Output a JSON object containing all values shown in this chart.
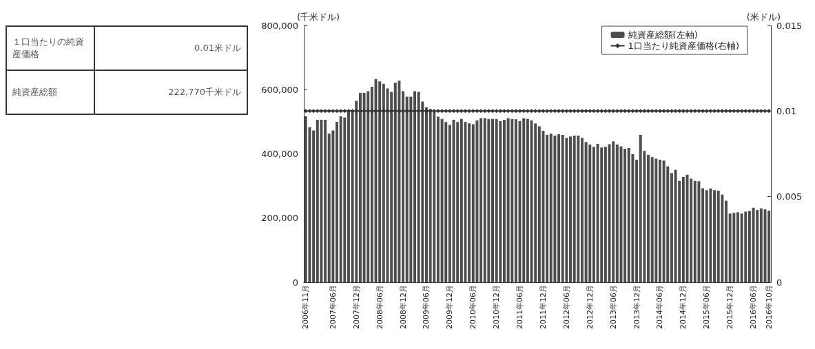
{
  "chart_data": [
    {
      "type": "other",
      "categories": [
        "１口当たりの純資産価格",
        "純資産総額"
      ],
      "value_labels": [
        "0.01米ドル",
        "222,770千米ドル"
      ]
    },
    {
      "type": "bar",
      "ylabel": "(千米ドル)",
      "y2label": "(米ドル)",
      "legend": "top right",
      "grid": false,
      "categories": [
        "2006年11月",
        null,
        null,
        null,
        null,
        null,
        null,
        "2007年06月",
        null,
        null,
        null,
        null,
        null,
        "2007年12月",
        null,
        null,
        null,
        null,
        null,
        "2008年06月",
        null,
        null,
        null,
        null,
        null,
        "2008年12月",
        null,
        null,
        null,
        null,
        null,
        "2009年06月",
        null,
        null,
        null,
        null,
        null,
        "2009年12月",
        null,
        null,
        null,
        null,
        null,
        "2010年06月",
        null,
        null,
        null,
        null,
        null,
        "2010年12月",
        null,
        null,
        null,
        null,
        null,
        "2011年06月",
        null,
        null,
        null,
        null,
        null,
        "2011年12月",
        null,
        null,
        null,
        null,
        null,
        "2012年06月",
        null,
        null,
        null,
        null,
        null,
        "2012年12月",
        null,
        null,
        null,
        null,
        null,
        "2013年06月",
        null,
        null,
        null,
        null,
        null,
        "2013年12月",
        null,
        null,
        null,
        null,
        null,
        "2014年06月",
        null,
        null,
        null,
        null,
        null,
        "2014年12月",
        null,
        null,
        null,
        null,
        null,
        "2015年06月",
        null,
        null,
        null,
        null,
        null,
        "2015年12月",
        null,
        null,
        null,
        null,
        null,
        "2016年06月",
        null,
        null,
        null,
        "2016年10月"
      ],
      "ylim": [
        0,
        800000
      ],
      "yticks": [
        0,
        {
          "value": 200000,
          "label": "200,000"
        },
        {
          "value": 400000,
          "label": "400,000"
        },
        {
          "value": 600000,
          "label": "600,000"
        },
        {
          "value": 800000,
          "label": "800,000"
        }
      ],
      "y2lim": [
        0,
        0.015
      ],
      "y2ticks": [
        0,
        0.005,
        0.01,
        0.015
      ],
      "series": [
        {
          "name": "純資産総額(左軸)",
          "type": "bar",
          "color": "#4d4d4d",
          "values": [
            517000,
            483000,
            473000,
            506000,
            506000,
            506000,
            463000,
            473000,
            500000,
            517000,
            513000,
            530000,
            535000,
            565000,
            590000,
            590000,
            595000,
            609000,
            633000,
            626000,
            618000,
            604000,
            593000,
            622000,
            628000,
            595000,
            578000,
            578000,
            595000,
            593000,
            563000,
            545000,
            540000,
            530000,
            516000,
            509000,
            499000,
            490000,
            506000,
            499000,
            509000,
            500000,
            495000,
            492000,
            504000,
            511000,
            511000,
            509000,
            509000,
            509000,
            502000,
            506000,
            511000,
            509000,
            508000,
            502000,
            511000,
            509000,
            504000,
            495000,
            486000,
            472000,
            459000,
            463000,
            457000,
            461000,
            459000,
            450000,
            454000,
            457000,
            457000,
            450000,
            437000,
            429000,
            422000,
            431000,
            420000,
            422000,
            430000,
            439000,
            429000,
            423000,
            416000,
            418000,
            399000,
            382000,
            459000,
            409000,
            397000,
            390000,
            385000,
            382000,
            379000,
            361000,
            340000,
            350000,
            316000,
            328000,
            335000,
            323000,
            316000,
            315000,
            293000,
            287000,
            292000,
            287000,
            285000,
            273000,
            254000,
            214000,
            216000,
            218000,
            214000,
            220000,
            222000,
            232000,
            225000,
            230000,
            227000,
            223000
          ]
        },
        {
          "name": "1口当たり純資産価格(右軸)",
          "type": "line",
          "axis": "y2",
          "color": "#333333",
          "marker": "diamond",
          "line_style": "solid",
          "values": [
            0.01,
            0.01,
            0.01,
            0.01,
            0.01,
            0.01,
            0.01,
            0.01,
            0.01,
            0.01,
            0.01,
            0.01,
            0.01,
            0.01,
            0.01,
            0.01,
            0.01,
            0.01,
            0.01,
            0.01,
            0.01,
            0.01,
            0.01,
            0.01,
            0.01,
            0.01,
            0.01,
            0.01,
            0.01,
            0.01,
            0.01,
            0.01,
            0.01,
            0.01,
            0.01,
            0.01,
            0.01,
            0.01,
            0.01,
            0.01,
            0.01,
            0.01,
            0.01,
            0.01,
            0.01,
            0.01,
            0.01,
            0.01,
            0.01,
            0.01,
            0.01,
            0.01,
            0.01,
            0.01,
            0.01,
            0.01,
            0.01,
            0.01,
            0.01,
            0.01,
            0.01,
            0.01,
            0.01,
            0.01,
            0.01,
            0.01,
            0.01,
            0.01,
            0.01,
            0.01,
            0.01,
            0.01,
            0.01,
            0.01,
            0.01,
            0.01,
            0.01,
            0.01,
            0.01,
            0.01,
            0.01,
            0.01,
            0.01,
            0.01,
            0.01,
            0.01,
            0.01,
            0.01,
            0.01,
            0.01,
            0.01,
            0.01,
            0.01,
            0.01,
            0.01,
            0.01,
            0.01,
            0.01,
            0.01,
            0.01,
            0.01,
            0.01,
            0.01,
            0.01,
            0.01,
            0.01,
            0.01,
            0.01,
            0.01,
            0.01,
            0.01,
            0.01,
            0.01,
            0.01,
            0.01,
            0.01,
            0.01,
            0.01,
            0.01,
            0.01
          ]
        }
      ]
    }
  ]
}
